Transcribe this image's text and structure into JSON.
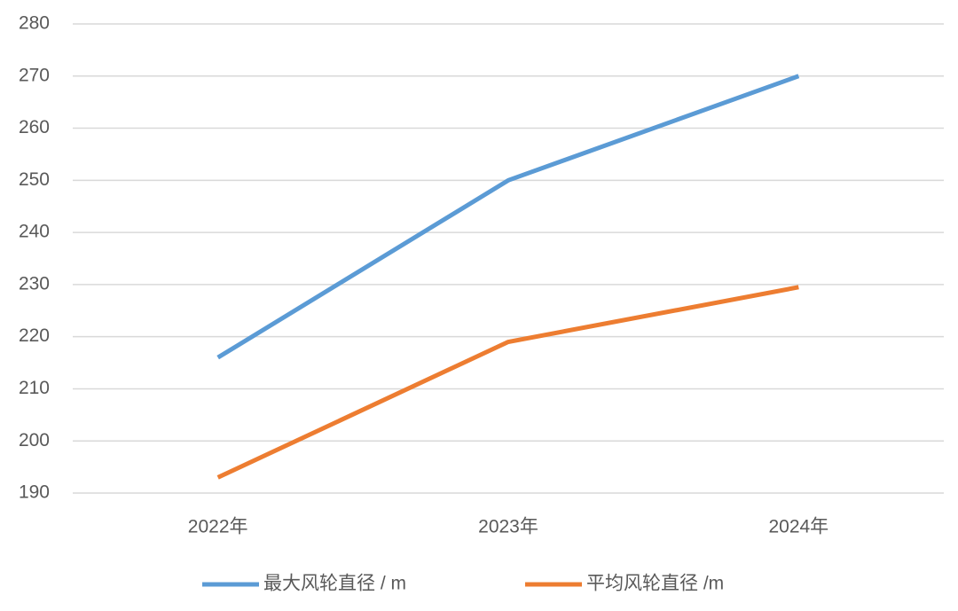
{
  "chart_data": {
    "type": "line",
    "categories": [
      "2022年",
      "2023年",
      "2024年"
    ],
    "series": [
      {
        "name": "最大风轮直径 / m",
        "color": "#5b9bd5",
        "values": [
          216,
          250,
          270
        ]
      },
      {
        "name": "平均风轮直径 /m",
        "color": "#ed7d31",
        "values": [
          193,
          219,
          229.5
        ]
      }
    ],
    "ylim": [
      190,
      280
    ],
    "yticks": [
      190,
      200,
      210,
      220,
      230,
      240,
      250,
      260,
      270,
      280
    ],
    "grid": true,
    "legend": "bottom"
  }
}
